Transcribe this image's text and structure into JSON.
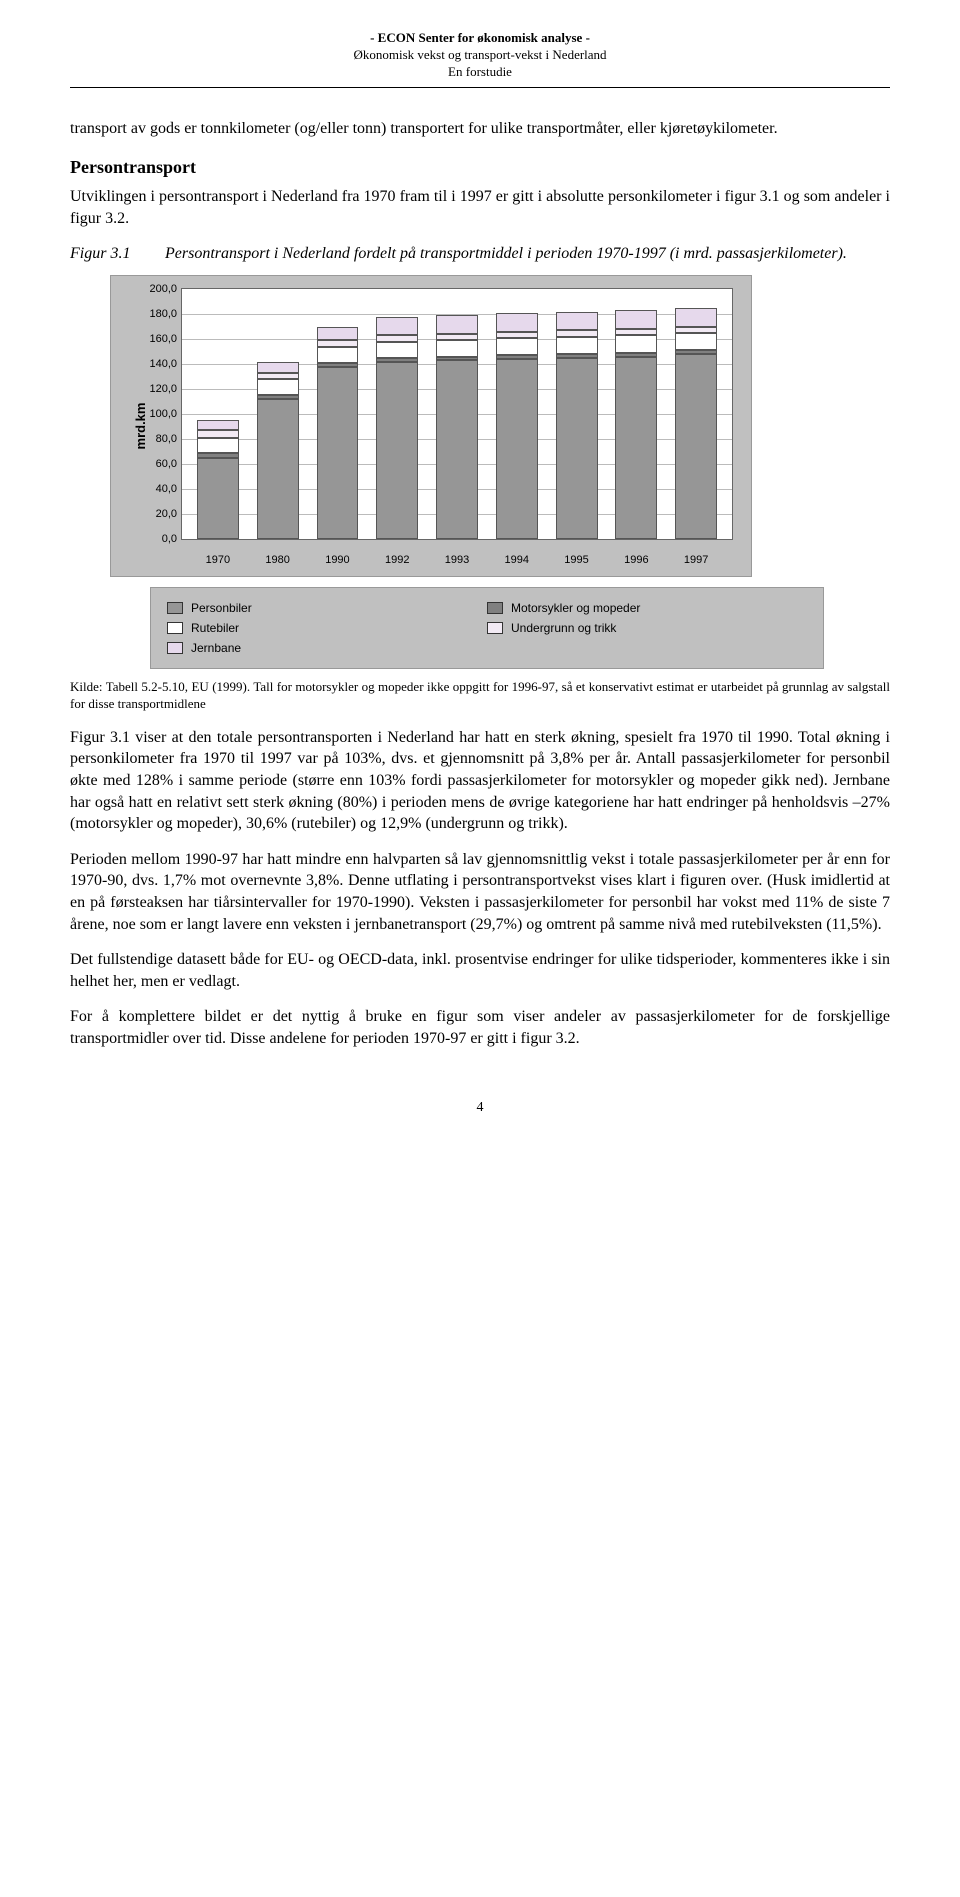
{
  "header": {
    "line1": "- ECON Senter for økonomisk analyse -",
    "line2": "Økonomisk vekst og transport-vekst i Nederland",
    "line3": "En forstudie"
  },
  "para1": "transport av gods er tonnkilometer (og/eller tonn) transportert for ulike transportmåter, eller kjøretøykilometer.",
  "h_persontransport": "Persontransport",
  "para2": "Utviklingen i persontransport i Nederland fra 1970 fram til i 1997 er gitt i absolutte personkilometer i figur 3.1 og som andeler i figur 3.2.",
  "figcap": {
    "label": "Figur 3.1",
    "text": "Persontransport i Nederland fordelt på transportmiddel i perioden 1970-1997 (i mrd. passasjerkilometer)."
  },
  "chart": {
    "type": "stacked-bar",
    "ylabel": "mrd.km",
    "ylim": [
      0,
      200
    ],
    "ytick_step": 20,
    "background_color": "#c0c0c0",
    "plot_bg": "#ffffff",
    "grid_color": "#bbbbbb",
    "border_color": "#666666",
    "bar_border": "#555555",
    "font_family": "Arial",
    "label_fontsize": 11,
    "categories": [
      "1970",
      "1980",
      "1990",
      "1992",
      "1993",
      "1994",
      "1995",
      "1996",
      "1997"
    ],
    "series": [
      {
        "name": "Personbiler",
        "color": "#969696"
      },
      {
        "name": "Motorsykler og mopeder",
        "color": "#808080"
      },
      {
        "name": "Rutebiler",
        "color": "#ffffff"
      },
      {
        "name": "Undergrunn og trikk",
        "color": "#f2eaf4"
      },
      {
        "name": "Jernbane",
        "color": "#e6d9ec"
      }
    ],
    "data": [
      [
        65,
        4,
        12,
        6,
        8
      ],
      [
        112,
        3,
        13,
        5,
        9
      ],
      [
        138,
        3,
        13,
        5,
        11
      ],
      [
        142,
        3,
        13,
        5,
        15
      ],
      [
        143,
        3,
        13,
        5,
        15
      ],
      [
        144,
        3,
        14,
        5,
        15
      ],
      [
        145,
        3,
        14,
        5,
        15
      ],
      [
        146,
        3,
        14,
        5,
        15
      ],
      [
        148,
        3,
        14,
        5,
        15
      ]
    ]
  },
  "source": {
    "label": "Kilde:",
    "text": "Tabell 5.2-5.10, EU (1999). Tall for motorsykler og mopeder ikke oppgitt for 1996-97, så et konservativt estimat er utarbeidet på grunnlag av salgstall for disse transportmidlene"
  },
  "para3": "Figur 3.1 viser at den totale persontransporten i Nederland har hatt en sterk økning, spesielt fra 1970 til 1990. Total økning i personkilometer fra 1970 til 1997 var på 103%, dvs. et gjennomsnitt på 3,8% per år. Antall passasjerkilometer for personbil økte med 128% i samme periode (større enn 103% fordi passasjerkilometer for motorsykler og mopeder gikk ned). Jernbane har også hatt en relativt sett sterk økning (80%) i perioden mens de øvrige kategoriene har hatt endringer på henholdsvis –27% (motorsykler og mopeder), 30,6% (rutebiler) og 12,9% (undergrunn og trikk).",
  "para4": "Perioden mellom 1990-97 har hatt mindre enn halvparten så lav gjennomsnittlig vekst i totale passasjerkilometer per år enn for 1970-90, dvs. 1,7% mot overnevnte 3,8%. Denne utflating i persontransportvekst vises klart i figuren over. (Husk imidlertid at en på førsteaksen har tiårsintervaller for 1970-1990). Veksten i passasjerkilometer for personbil har vokst med 11% de siste 7 årene, noe som er langt lavere enn veksten i jernbanetransport (29,7%) og omtrent på samme nivå med rutebilveksten (11,5%).",
  "para5": "Det fullstendige datasett både for EU- og OECD-data, inkl. prosentvise endringer for ulike tidsperioder, kommenteres ikke i sin helhet her, men er vedlagt.",
  "para6": "For å komplettere bildet er det nyttig å bruke en figur som viser andeler av passasjerkilometer for de forskjellige transportmidler over tid. Disse andelene for perioden 1970-97 er gitt i figur 3.2.",
  "pagenum": "4"
}
